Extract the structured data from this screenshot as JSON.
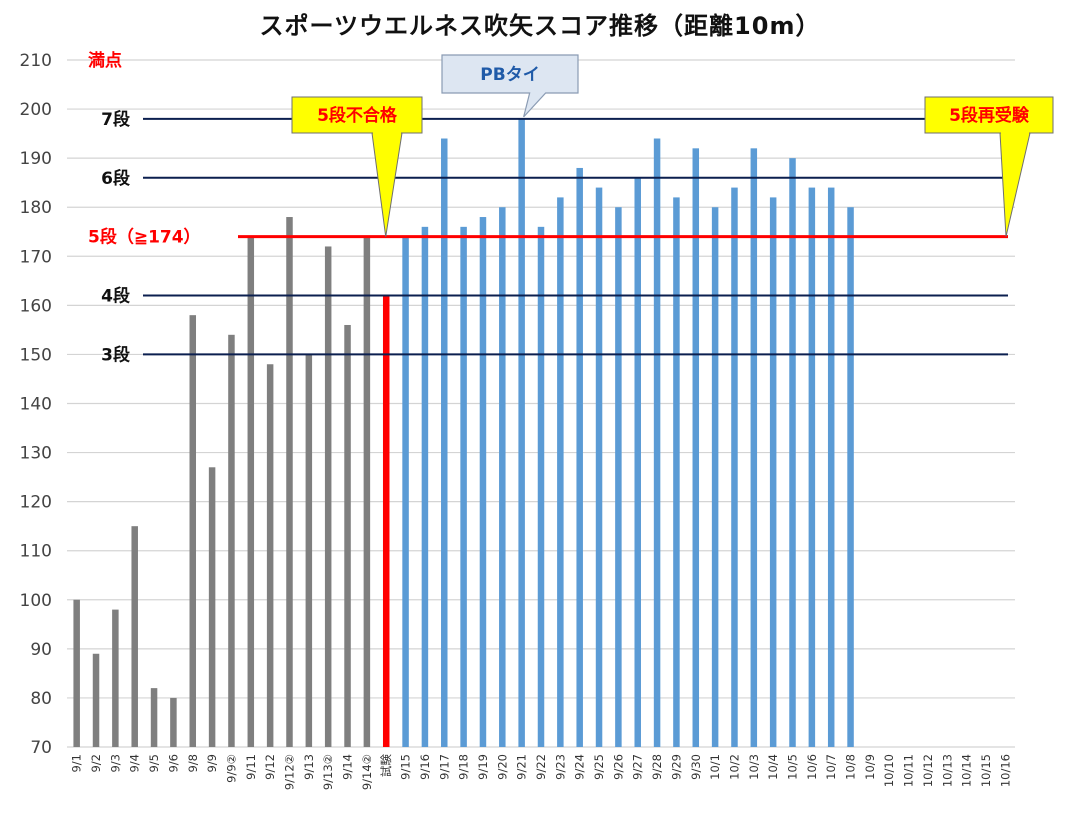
{
  "title": "スポーツウエルネス吹矢スコア推移（距離10m）",
  "chart_data": {
    "type": "bar",
    "title": "スポーツウエルネス吹矢スコア推移（距離10m）",
    "xlabel": "",
    "ylabel": "",
    "ylim": [
      70,
      210
    ],
    "yticks": [
      70,
      80,
      90,
      100,
      110,
      120,
      130,
      140,
      150,
      160,
      170,
      180,
      190,
      200,
      210
    ],
    "grid": true,
    "categories": [
      "9/1",
      "9/2",
      "9/3",
      "9/4",
      "9/5",
      "9/6",
      "9/8",
      "9/9",
      "9/9②",
      "9/11",
      "9/12",
      "9/12②",
      "9/13",
      "9/13②",
      "9/14",
      "9/14②",
      "試験",
      "9/15",
      "9/16",
      "9/17",
      "9/18",
      "9/19",
      "9/20",
      "9/21",
      "9/22",
      "9/23",
      "9/24",
      "9/25",
      "9/26",
      "9/27",
      "9/28",
      "9/29",
      "9/30",
      "10/1",
      "10/2",
      "10/3",
      "10/4",
      "10/5",
      "10/6",
      "10/7",
      "10/8",
      "10/9",
      "10/10",
      "10/11",
      "10/12",
      "10/13",
      "10/14",
      "10/15",
      "10/16"
    ],
    "values": [
      100,
      89,
      98,
      115,
      82,
      80,
      158,
      127,
      154,
      174,
      148,
      178,
      150,
      172,
      156,
      174,
      162,
      174,
      176,
      194,
      176,
      178,
      180,
      198,
      176,
      182,
      188,
      184,
      180,
      186,
      194,
      182,
      192,
      180,
      184,
      192,
      182,
      190,
      184,
      184,
      180,
      null,
      null,
      null,
      null,
      null,
      null,
      null,
      null
    ],
    "bar_colors": {
      "practice": "#7f7f7f",
      "exam": "#ff0000",
      "after": "#5b9bd5"
    },
    "reference_lines": [
      {
        "label": "3段",
        "value": 150,
        "color": "#0b1f4f"
      },
      {
        "label": "4段",
        "value": 162,
        "color": "#0b1f4f"
      },
      {
        "label": "5段（≧174）",
        "value": 174,
        "color": "#ff0000"
      },
      {
        "label": "6段",
        "value": 186,
        "color": "#0b1f4f"
      },
      {
        "label": "7段",
        "value": 198,
        "color": "#0b1f4f"
      }
    ],
    "top_label": {
      "label": "満点",
      "value": 210,
      "color": "#ff0000"
    },
    "annotations": [
      {
        "text": "5段不合格",
        "style": "yellow",
        "target_category": "試験"
      },
      {
        "text": "PBタイ",
        "style": "blue",
        "target_category": "9/21"
      },
      {
        "text": "5段再受験",
        "style": "yellow",
        "target_category": "10/16"
      }
    ]
  }
}
